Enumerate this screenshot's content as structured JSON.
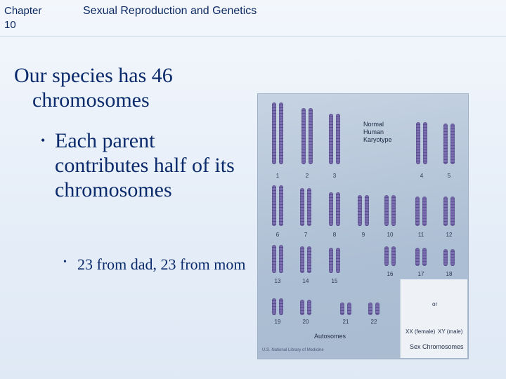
{
  "header": {
    "chapter": "Chapter\n10",
    "subject": "Sexual Reproduction and Genetics"
  },
  "content": {
    "level1": "Our species has 46 chromosomes",
    "level2": "Each parent contributes half of its chromosomes",
    "level3": "23 from dad, 23 from mom",
    "bullet_glyph": "•"
  },
  "figure": {
    "title_lines": [
      "Normal",
      "Human",
      "Karyotype"
    ],
    "numbers": [
      "1",
      "2",
      "3",
      "4",
      "5",
      "6",
      "7",
      "8",
      "9",
      "10",
      "11",
      "12",
      "13",
      "14",
      "15",
      "16",
      "17",
      "18",
      "19",
      "20",
      "21",
      "22"
    ],
    "or_label": "or",
    "xx_label": "XX (female)",
    "xy_label": "XY (male)",
    "autosomes_label": "Autosomes",
    "sex_label": "Sex Chromosomes",
    "credit": "U.S. National Library of Medicine",
    "chromosome_color": "#7b6fb0"
  }
}
